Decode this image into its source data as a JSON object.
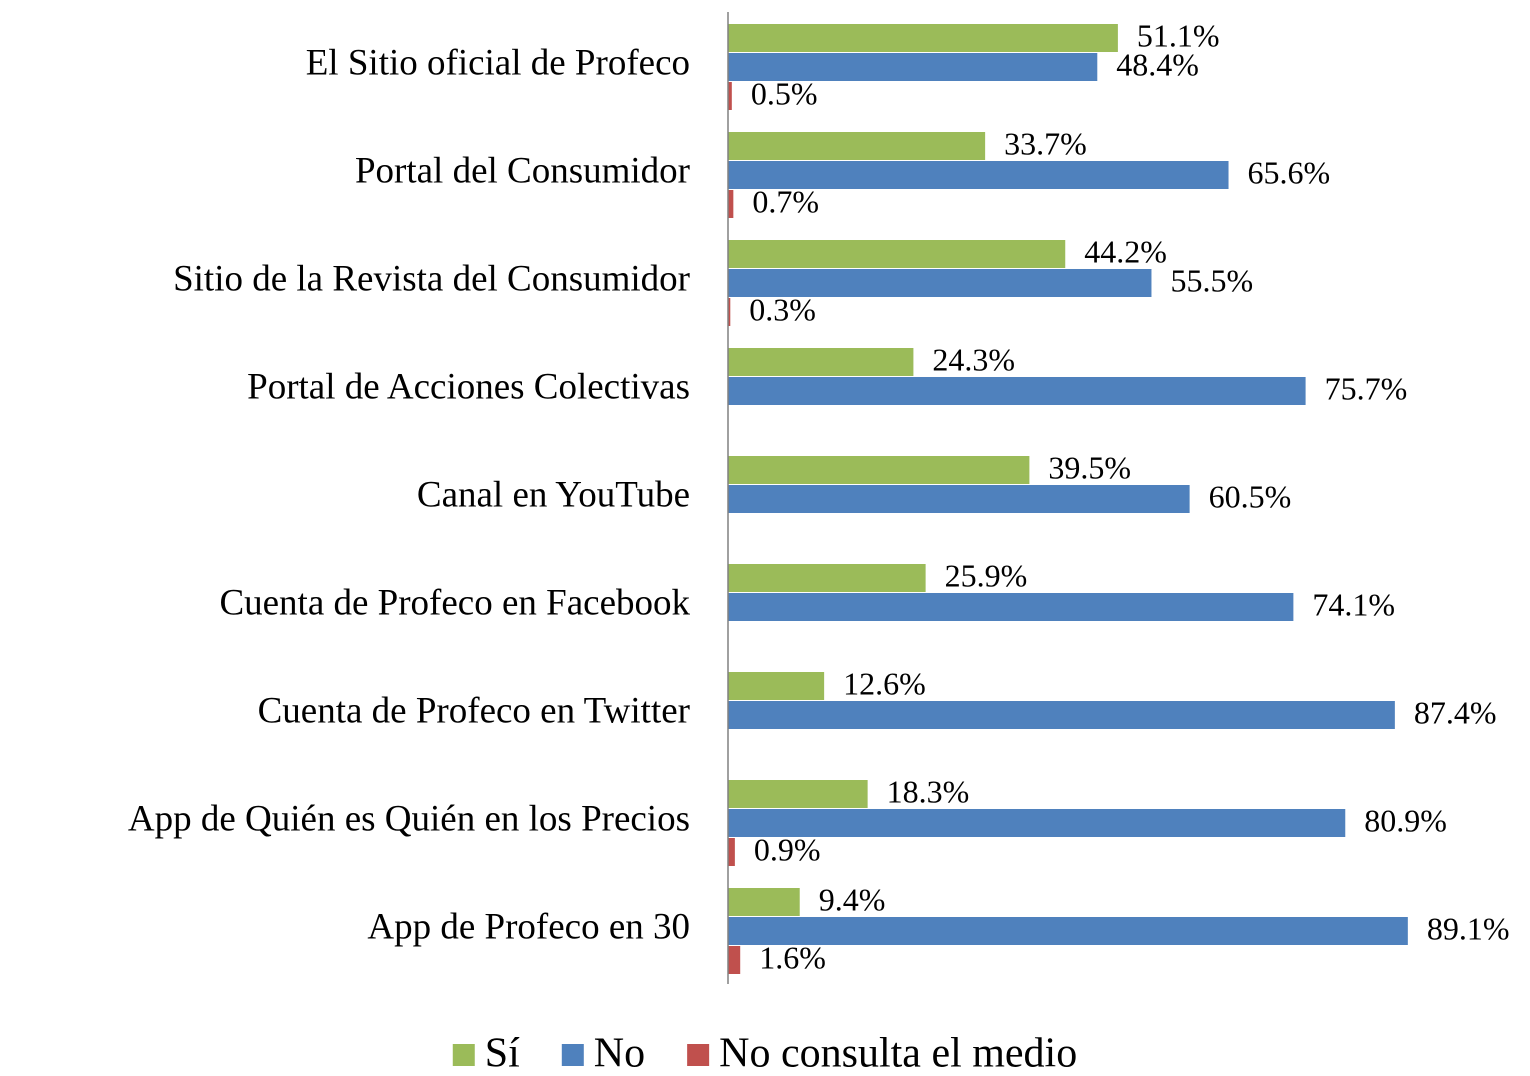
{
  "chart_data": {
    "type": "bar",
    "orientation": "horizontal",
    "categories": [
      "El Sitio oficial de Profeco",
      "Portal del Consumidor",
      "Sitio de la Revista del Consumidor",
      "Portal de Acciones Colectivas",
      "Canal en YouTube",
      "Cuenta de Profeco en Facebook",
      "Cuenta de Profeco en Twitter",
      "App de Quién es Quién en los Precios",
      "App de Profeco en 30"
    ],
    "series": [
      {
        "name": "Sí",
        "color": "#9bbb59",
        "values": [
          51.1,
          33.7,
          44.2,
          24.3,
          39.5,
          25.9,
          12.6,
          18.3,
          9.4
        ],
        "value_labels": [
          "51.1%",
          "33.7%",
          "44.2%",
          "24.3%",
          "39.5%",
          "25.9%",
          "12.6%",
          "18.3%",
          "9.4%"
        ]
      },
      {
        "name": "No",
        "color": "#4f81bd",
        "values": [
          48.4,
          65.6,
          55.5,
          75.7,
          60.5,
          74.1,
          87.4,
          80.9,
          89.1
        ],
        "value_labels": [
          "48.4%",
          "65.6%",
          "55.5%",
          "75.7%",
          "60.5%",
          "74.1%",
          "87.4%",
          "80.9%",
          "89.1%"
        ]
      },
      {
        "name": "No consulta el medio",
        "color": "#c0504d",
        "values": [
          0.5,
          0.7,
          0.3,
          null,
          null,
          null,
          null,
          0.9,
          1.6
        ],
        "value_labels": [
          "0.5%",
          "0.7%",
          "0.3%",
          null,
          null,
          null,
          null,
          "0.9%",
          "1.6%"
        ]
      }
    ],
    "xlim": [
      0,
      100
    ],
    "legend": "bottom"
  }
}
